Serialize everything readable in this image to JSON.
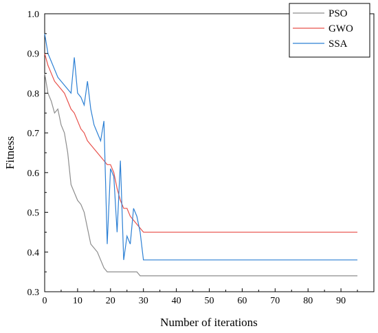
{
  "chart_data": {
    "type": "line",
    "xlabel": "Number of iterations",
    "ylabel": "Fitness",
    "xlim": [
      0,
      100
    ],
    "ylim": [
      0.3,
      1.0
    ],
    "xticks": [
      0,
      10,
      20,
      30,
      40,
      50,
      60,
      70,
      80,
      90
    ],
    "yticks": [
      0.3,
      0.4,
      0.5,
      0.6,
      0.7,
      0.8,
      0.9,
      1.0
    ],
    "grid": false,
    "legend_position": "top-right",
    "series": [
      {
        "name": "PSO",
        "color": "#8c8c8c",
        "x": [
          0,
          1,
          2,
          3,
          4,
          5,
          6,
          7,
          8,
          9,
          10,
          11,
          12,
          13,
          14,
          15,
          16,
          17,
          18,
          19,
          20,
          21,
          22,
          23,
          24,
          25,
          26,
          27,
          28,
          29,
          30,
          40,
          50,
          60,
          70,
          80,
          90,
          95
        ],
        "y": [
          0.85,
          0.8,
          0.78,
          0.75,
          0.76,
          0.72,
          0.7,
          0.65,
          0.57,
          0.55,
          0.53,
          0.52,
          0.5,
          0.46,
          0.42,
          0.41,
          0.4,
          0.38,
          0.36,
          0.35,
          0.35,
          0.35,
          0.35,
          0.35,
          0.35,
          0.35,
          0.35,
          0.35,
          0.35,
          0.34,
          0.34,
          0.34,
          0.34,
          0.34,
          0.34,
          0.34,
          0.34,
          0.34
        ]
      },
      {
        "name": "GWO",
        "color": "#e8504a",
        "x": [
          0,
          1,
          2,
          3,
          4,
          5,
          6,
          7,
          8,
          9,
          10,
          11,
          12,
          13,
          14,
          15,
          16,
          17,
          18,
          19,
          20,
          21,
          22,
          23,
          24,
          25,
          26,
          27,
          28,
          29,
          30,
          40,
          50,
          60,
          70,
          80,
          90,
          95
        ],
        "y": [
          0.9,
          0.87,
          0.85,
          0.83,
          0.82,
          0.81,
          0.8,
          0.78,
          0.76,
          0.75,
          0.73,
          0.71,
          0.7,
          0.68,
          0.67,
          0.66,
          0.65,
          0.64,
          0.63,
          0.62,
          0.62,
          0.6,
          0.56,
          0.53,
          0.51,
          0.51,
          0.49,
          0.48,
          0.47,
          0.46,
          0.45,
          0.45,
          0.45,
          0.45,
          0.45,
          0.45,
          0.45,
          0.45
        ]
      },
      {
        "name": "SSA",
        "color": "#2b7fd4",
        "x": [
          0,
          1,
          2,
          3,
          4,
          5,
          6,
          7,
          8,
          9,
          10,
          11,
          12,
          13,
          14,
          15,
          16,
          17,
          18,
          19,
          20,
          21,
          22,
          23,
          24,
          25,
          26,
          27,
          28,
          29,
          30,
          40,
          50,
          60,
          70,
          80,
          90,
          95
        ],
        "y": [
          0.95,
          0.9,
          0.88,
          0.86,
          0.84,
          0.83,
          0.82,
          0.81,
          0.8,
          0.89,
          0.8,
          0.79,
          0.77,
          0.83,
          0.76,
          0.72,
          0.7,
          0.68,
          0.73,
          0.42,
          0.61,
          0.59,
          0.45,
          0.63,
          0.38,
          0.44,
          0.42,
          0.51,
          0.49,
          0.45,
          0.38,
          0.38,
          0.38,
          0.38,
          0.38,
          0.38,
          0.38,
          0.38
        ]
      }
    ]
  }
}
